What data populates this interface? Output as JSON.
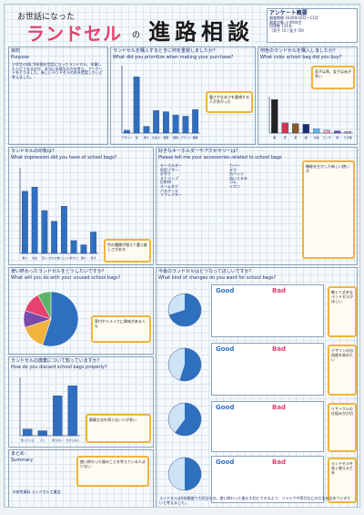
{
  "header": {
    "prefix": "お世話になった",
    "brand": "ランドセル",
    "particle": "の",
    "title": "進路相談"
  },
  "survey_box": {
    "title": "アンケート概要",
    "lines": [
      "調査期間 2020年10月〜11月",
      "調査対象 小学6年生",
      "回答数 131名",
      "（男子 72 / 女子 59）"
    ]
  },
  "sections": {
    "purpose": {
      "jp": "目的",
      "en": "Purpose"
    },
    "priority": {
      "jp": "ランドセルを購入するときに何を重視しましたか？",
      "en": "What did you prioritize when making your purchase?"
    },
    "color": {
      "jp": "何色のランドセルを購入しましたか？",
      "en": "What color school bag did you buy?"
    },
    "impression": {
      "jp": "ランドセルの印象は？",
      "en": "What impression did you have of school bags?"
    },
    "accessories": {
      "jp": "好きなキーホルダーやアクセサリーは？",
      "en": "Please tell me your accessories related to school bags"
    },
    "after_use": {
      "jp": "使い終わったランドセルをどうしたいですか？",
      "en": "What will you do with your unused school bags?"
    },
    "future": {
      "jp": "今後のランドセルはどうなってほしいですか？",
      "en": "What kind of changes do you want for school bags?"
    },
    "dispose": {
      "jp": "ランドセルの廃棄について知っていますか？",
      "en": "How do you discard school bags properly?"
    },
    "summary": {
      "jp": "まとめ",
      "en": "Summary"
    }
  },
  "purpose_text": "小学生の頃に6年間お世話になったランドセル。卒業したらどうなるのか、本当に必要なのかを考え、アンケートをとりました。新しいランドセルの形を提案したいと考えました。",
  "accessory_list": [
    "キーホルダー",
    "防犯ブザー",
    "お守り",
    "ストラップ",
    "反射材",
    "ネームタグ",
    "パスケース",
    "リフレクター"
  ],
  "accessory_list2": [
    "カバー",
    "タグ",
    "缶バッジ",
    "ぬいぐるみ",
    "ゴム",
    "リボン"
  ],
  "notes": {
    "n1": "色の種類が増えて選ぶ楽しさがある",
    "n2": "重さや丈夫さを重視する人が多かった",
    "n3": "男子は黒、女子は赤が多い",
    "n4": "使い終わった後のことを考えている人は少ない",
    "n5": "寄付やリメイクに興味がある人も",
    "n6": "廃棄方法を知らない人が多い",
    "n7": "軽くて丈夫なランドセルがほしい",
    "n8": "デザインの自由度を高めたい",
    "n9": "リサイクルの仕組みが大切",
    "n10": "ランドセルを長く使える工夫",
    "n11": "機能を生かした新しい使い方"
  },
  "good_bad": {
    "good": "Good",
    "bad": "Bad"
  },
  "summary_text": "ランドセルは6年間使う大切なもの。使い終わった後も大切にできるよう、リメイクや寄付などの方法を広めていきたいと考えました。",
  "footer": "※参考資料 ランドセル工業会",
  "colors": {
    "title_red": "#e8416f",
    "bar_blue": "#2f6fc0",
    "accent_orange": "#f2b33d"
  },
  "chart_data": [
    {
      "type": "bar",
      "title": "ランドセルを購入するときに何を重視しましたか？",
      "categories": [
        "デザイン",
        "色",
        "重さ",
        "丈夫さ",
        "容量",
        "価格",
        "ブランド",
        "機能"
      ],
      "values": [
        5,
        100,
        12,
        40,
        38,
        32,
        30,
        42
      ],
      "ylim": [
        0,
        120
      ]
    },
    {
      "type": "bar",
      "title": "何色のランドセルを購入しましたか？",
      "categories": [
        "黒",
        "赤",
        "茶",
        "紺",
        "水色",
        "ピンク",
        "紫",
        "その他"
      ],
      "values": [
        46,
        14,
        13,
        12,
        6,
        4,
        3,
        2
      ],
      "ylim": [
        0,
        50
      ]
    },
    {
      "type": "bar",
      "title": "ランドセルの印象は？",
      "categories": [
        "重い",
        "丈夫",
        "高い",
        "かわいい",
        "かっこいい",
        "大きい",
        "暑い",
        "好き"
      ],
      "values": [
        58,
        62,
        40,
        30,
        44,
        12,
        8,
        20
      ],
      "ylim": [
        0,
        80
      ]
    },
    {
      "type": "pie",
      "title": "使い終わったランドセルをどうしたいですか？",
      "categories": [
        "保管",
        "寄付",
        "リメイク",
        "捨てる",
        "その他"
      ],
      "values": [
        55,
        15,
        10,
        12,
        8
      ]
    },
    {
      "type": "bar",
      "title": "ランドセルの廃棄について知っていますか？",
      "categories": [
        "知っている",
        "少し",
        "知らない",
        "わからない"
      ],
      "values": [
        8,
        6,
        48,
        60
      ],
      "ylim": [
        0,
        70
      ]
    }
  ]
}
